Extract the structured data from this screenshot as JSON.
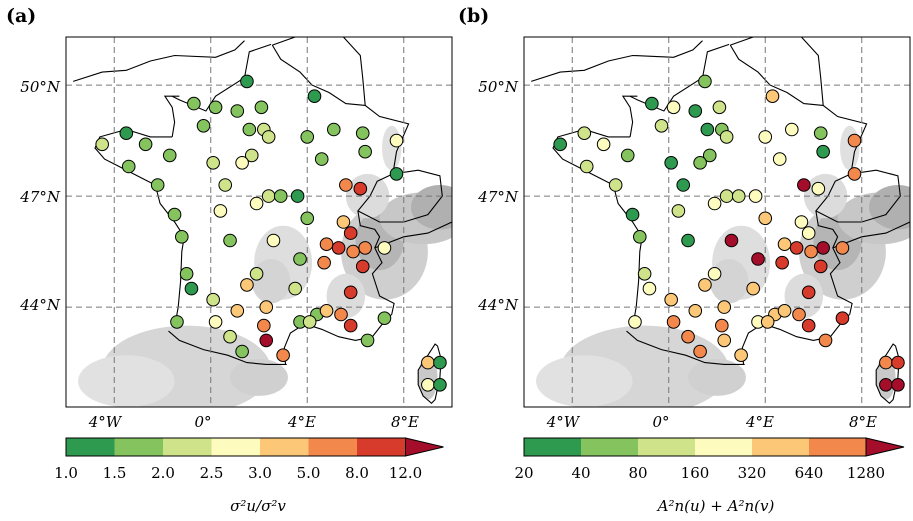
{
  "panels": [
    {
      "label": "(a)",
      "x_ticks": [
        "4°W",
        "0°",
        "4°E",
        "8°E"
      ],
      "y_ticks": [
        "50°N",
        "47°N",
        "44°N"
      ],
      "colorbar": {
        "ticks": [
          "1.0",
          "1.5",
          "2.0",
          "2.5",
          "3.0",
          "5.0",
          "8.0",
          "12.0"
        ],
        "label": "σ²u/σ²v",
        "colors": [
          "#2e9a4f",
          "#84c35e",
          "#cfe48a",
          "#fdfcbe",
          "#fcc878",
          "#f3884c",
          "#d73b2c",
          "#a50e2a"
        ]
      }
    },
    {
      "label": "(b)",
      "x_ticks": [
        "4°W",
        "0°",
        "4°E",
        "8°E"
      ],
      "y_ticks": [
        "50°N",
        "47°N",
        "44°N"
      ],
      "colorbar": {
        "ticks": [
          "20",
          "40",
          "80",
          "160",
          "320",
          "640",
          "1280"
        ],
        "label": "A²n(u) + A²n(v)",
        "colors": [
          "#2e9a4f",
          "#84c35e",
          "#cfe48a",
          "#fdfcbe",
          "#fcc878",
          "#f3884c",
          "#d73b2c",
          "#a50e2a"
        ]
      }
    }
  ],
  "map_data": {
    "lon_range": [
      -6.0,
      10.0
    ],
    "lat_range": [
      41.3,
      51.3
    ],
    "grid_lons": [
      -4,
      0,
      4,
      8
    ],
    "grid_lats": [
      50,
      47,
      44
    ],
    "stations_a": [
      {
        "lon": 1.5,
        "lat": 50.1,
        "c": 0
      },
      {
        "lon": 4.3,
        "lat": 49.7,
        "c": 0
      },
      {
        "lon": -0.7,
        "lat": 49.5,
        "c": 1
      },
      {
        "lon": 0.2,
        "lat": 49.4,
        "c": 1
      },
      {
        "lon": 1.1,
        "lat": 49.3,
        "c": 1
      },
      {
        "lon": 2.1,
        "lat": 49.4,
        "c": 1
      },
      {
        "lon": -0.3,
        "lat": 48.9,
        "c": 1
      },
      {
        "lon": 1.6,
        "lat": 48.8,
        "c": 1
      },
      {
        "lon": 2.2,
        "lat": 48.8,
        "c": 2
      },
      {
        "lon": 2.4,
        "lat": 48.6,
        "c": 2
      },
      {
        "lon": 4.0,
        "lat": 48.6,
        "c": 1
      },
      {
        "lon": 5.1,
        "lat": 48.8,
        "c": 1
      },
      {
        "lon": 6.3,
        "lat": 48.7,
        "c": 1
      },
      {
        "lon": -4.5,
        "lat": 48.4,
        "c": 2
      },
      {
        "lon": -3.5,
        "lat": 48.7,
        "c": 0
      },
      {
        "lon": -2.7,
        "lat": 48.4,
        "c": 1
      },
      {
        "lon": -1.7,
        "lat": 48.1,
        "c": 1
      },
      {
        "lon": 1.7,
        "lat": 48.1,
        "c": 2
      },
      {
        "lon": 4.6,
        "lat": 48.0,
        "c": 1
      },
      {
        "lon": 6.4,
        "lat": 48.2,
        "c": 1
      },
      {
        "lon": 7.7,
        "lat": 48.5,
        "c": 3
      },
      {
        "lon": -3.4,
        "lat": 47.8,
        "c": 1
      },
      {
        "lon": -2.2,
        "lat": 47.3,
        "c": 1
      },
      {
        "lon": 0.1,
        "lat": 47.9,
        "c": 2
      },
      {
        "lon": 0.6,
        "lat": 47.3,
        "c": 2
      },
      {
        "lon": 1.3,
        "lat": 47.9,
        "c": 3
      },
      {
        "lon": 2.4,
        "lat": 47.0,
        "c": 2
      },
      {
        "lon": 2.9,
        "lat": 47.0,
        "c": 1
      },
      {
        "lon": 3.6,
        "lat": 47.0,
        "c": 0
      },
      {
        "lon": 5.6,
        "lat": 47.3,
        "c": 5
      },
      {
        "lon": 6.2,
        "lat": 47.2,
        "c": 6
      },
      {
        "lon": 7.7,
        "lat": 47.6,
        "c": 0
      },
      {
        "lon": -1.5,
        "lat": 46.5,
        "c": 1
      },
      {
        "lon": 0.4,
        "lat": 46.6,
        "c": 3
      },
      {
        "lon": 1.9,
        "lat": 46.8,
        "c": 3
      },
      {
        "lon": 4.0,
        "lat": 46.4,
        "c": 1
      },
      {
        "lon": 5.5,
        "lat": 46.3,
        "c": 4
      },
      {
        "lon": -1.2,
        "lat": 45.9,
        "c": 1
      },
      {
        "lon": 0.8,
        "lat": 45.8,
        "c": 1
      },
      {
        "lon": 2.6,
        "lat": 45.8,
        "c": 3
      },
      {
        "lon": 4.8,
        "lat": 45.7,
        "c": 5
      },
      {
        "lon": 5.8,
        "lat": 46.0,
        "c": 6
      },
      {
        "lon": 5.3,
        "lat": 45.6,
        "c": 6
      },
      {
        "lon": 6.4,
        "lat": 45.6,
        "c": 5
      },
      {
        "lon": 7.2,
        "lat": 45.6,
        "c": 3
      },
      {
        "lon": 3.7,
        "lat": 45.3,
        "c": 1
      },
      {
        "lon": 4.7,
        "lat": 45.2,
        "c": 5
      },
      {
        "lon": 5.9,
        "lat": 45.5,
        "c": 5
      },
      {
        "lon": 6.3,
        "lat": 45.1,
        "c": 6
      },
      {
        "lon": -1.0,
        "lat": 44.9,
        "c": 1
      },
      {
        "lon": 1.9,
        "lat": 44.9,
        "c": 2
      },
      {
        "lon": -0.8,
        "lat": 44.5,
        "c": 0
      },
      {
        "lon": 1.5,
        "lat": 44.6,
        "c": 4
      },
      {
        "lon": 0.1,
        "lat": 44.2,
        "c": 2
      },
      {
        "lon": 3.5,
        "lat": 44.5,
        "c": 2
      },
      {
        "lon": 2.3,
        "lat": 44.0,
        "c": 4
      },
      {
        "lon": 5.8,
        "lat": 44.4,
        "c": 6
      },
      {
        "lon": -1.4,
        "lat": 43.6,
        "c": 1
      },
      {
        "lon": 0.2,
        "lat": 43.6,
        "c": 3
      },
      {
        "lon": 1.1,
        "lat": 43.9,
        "c": 4
      },
      {
        "lon": 2.2,
        "lat": 43.5,
        "c": 5
      },
      {
        "lon": 3.7,
        "lat": 43.6,
        "c": 1
      },
      {
        "lon": 4.4,
        "lat": 43.8,
        "c": 1
      },
      {
        "lon": 4.8,
        "lat": 43.9,
        "c": 4
      },
      {
        "lon": 5.4,
        "lat": 43.8,
        "c": 5
      },
      {
        "lon": 5.8,
        "lat": 43.5,
        "c": 6
      },
      {
        "lon": 7.2,
        "lat": 43.7,
        "c": 1
      },
      {
        "lon": 0.8,
        "lat": 43.2,
        "c": 2
      },
      {
        "lon": 2.3,
        "lat": 43.1,
        "c": 7
      },
      {
        "lon": 1.3,
        "lat": 42.8,
        "c": 1
      },
      {
        "lon": 3.0,
        "lat": 42.7,
        "c": 5
      },
      {
        "lon": 6.5,
        "lat": 43.1,
        "c": 1
      },
      {
        "lon": 4.1,
        "lat": 43.6,
        "c": 2
      },
      {
        "lon": 9.0,
        "lat": 42.5,
        "c": 4
      },
      {
        "lon": 9.5,
        "lat": 42.5,
        "c": 0
      },
      {
        "lon": 9.0,
        "lat": 41.9,
        "c": 3
      },
      {
        "lon": 9.5,
        "lat": 41.9,
        "c": 0
      }
    ],
    "stations_b": [
      {
        "lon": 1.5,
        "lat": 50.1,
        "c": 1
      },
      {
        "lon": 4.3,
        "lat": 49.7,
        "c": 4
      },
      {
        "lon": -0.7,
        "lat": 49.5,
        "c": 0
      },
      {
        "lon": 0.2,
        "lat": 49.4,
        "c": 3
      },
      {
        "lon": 1.1,
        "lat": 49.3,
        "c": 0
      },
      {
        "lon": 2.1,
        "lat": 49.4,
        "c": 2
      },
      {
        "lon": -0.3,
        "lat": 48.9,
        "c": 2
      },
      {
        "lon": 1.6,
        "lat": 48.8,
        "c": 0
      },
      {
        "lon": 2.2,
        "lat": 48.8,
        "c": 1
      },
      {
        "lon": 2.4,
        "lat": 48.6,
        "c": 2
      },
      {
        "lon": 4.0,
        "lat": 48.6,
        "c": 3
      },
      {
        "lon": 5.1,
        "lat": 48.8,
        "c": 3
      },
      {
        "lon": 6.3,
        "lat": 48.7,
        "c": 1
      },
      {
        "lon": -4.5,
        "lat": 48.4,
        "c": 0
      },
      {
        "lon": -3.5,
        "lat": 48.7,
        "c": 2
      },
      {
        "lon": -2.7,
        "lat": 48.4,
        "c": 3
      },
      {
        "lon": -1.7,
        "lat": 48.1,
        "c": 1
      },
      {
        "lon": 1.7,
        "lat": 48.1,
        "c": 1
      },
      {
        "lon": 4.6,
        "lat": 48.0,
        "c": 3
      },
      {
        "lon": 6.4,
        "lat": 48.2,
        "c": 0
      },
      {
        "lon": 7.7,
        "lat": 48.5,
        "c": 5
      },
      {
        "lon": -3.4,
        "lat": 47.8,
        "c": 2
      },
      {
        "lon": -2.2,
        "lat": 47.3,
        "c": 2
      },
      {
        "lon": 0.1,
        "lat": 47.9,
        "c": 0
      },
      {
        "lon": 0.6,
        "lat": 47.3,
        "c": 0
      },
      {
        "lon": 1.3,
        "lat": 47.9,
        "c": 1
      },
      {
        "lon": 2.4,
        "lat": 47.0,
        "c": 2
      },
      {
        "lon": 2.9,
        "lat": 47.0,
        "c": 2
      },
      {
        "lon": 3.6,
        "lat": 47.0,
        "c": 3
      },
      {
        "lon": 5.6,
        "lat": 47.3,
        "c": 7
      },
      {
        "lon": 6.2,
        "lat": 47.2,
        "c": 3
      },
      {
        "lon": 7.7,
        "lat": 47.6,
        "c": 5
      },
      {
        "lon": -1.5,
        "lat": 46.5,
        "c": 0
      },
      {
        "lon": 0.4,
        "lat": 46.6,
        "c": 2
      },
      {
        "lon": 1.9,
        "lat": 46.8,
        "c": 3
      },
      {
        "lon": 4.0,
        "lat": 46.4,
        "c": 4
      },
      {
        "lon": 5.5,
        "lat": 46.3,
        "c": 3
      },
      {
        "lon": -1.2,
        "lat": 45.9,
        "c": 1
      },
      {
        "lon": 0.8,
        "lat": 45.8,
        "c": 0
      },
      {
        "lon": 2.6,
        "lat": 45.8,
        "c": 7
      },
      {
        "lon": 4.8,
        "lat": 45.7,
        "c": 4
      },
      {
        "lon": 5.8,
        "lat": 46.0,
        "c": 3
      },
      {
        "lon": 5.3,
        "lat": 45.6,
        "c": 6
      },
      {
        "lon": 6.4,
        "lat": 45.6,
        "c": 7
      },
      {
        "lon": 7.2,
        "lat": 45.6,
        "c": 5
      },
      {
        "lon": 3.7,
        "lat": 45.3,
        "c": 7
      },
      {
        "lon": 4.7,
        "lat": 45.2,
        "c": 6
      },
      {
        "lon": 5.9,
        "lat": 45.5,
        "c": 5
      },
      {
        "lon": 6.3,
        "lat": 45.1,
        "c": 6
      },
      {
        "lon": -1.0,
        "lat": 44.9,
        "c": 2
      },
      {
        "lon": 1.9,
        "lat": 44.9,
        "c": 3
      },
      {
        "lon": -0.8,
        "lat": 44.5,
        "c": 3
      },
      {
        "lon": 1.5,
        "lat": 44.6,
        "c": 4
      },
      {
        "lon": 0.1,
        "lat": 44.2,
        "c": 4
      },
      {
        "lon": 3.5,
        "lat": 44.5,
        "c": 4
      },
      {
        "lon": 2.3,
        "lat": 44.0,
        "c": 4
      },
      {
        "lon": 5.8,
        "lat": 44.4,
        "c": 6
      },
      {
        "lon": -1.4,
        "lat": 43.6,
        "c": 3
      },
      {
        "lon": 0.2,
        "lat": 43.6,
        "c": 5
      },
      {
        "lon": 1.1,
        "lat": 43.9,
        "c": 4
      },
      {
        "lon": 2.2,
        "lat": 43.5,
        "c": 5
      },
      {
        "lon": 3.7,
        "lat": 43.6,
        "c": 3
      },
      {
        "lon": 4.4,
        "lat": 43.8,
        "c": 4
      },
      {
        "lon": 4.8,
        "lat": 43.9,
        "c": 4
      },
      {
        "lon": 5.4,
        "lat": 43.8,
        "c": 5
      },
      {
        "lon": 5.8,
        "lat": 43.5,
        "c": 6
      },
      {
        "lon": 7.2,
        "lat": 43.7,
        "c": 6
      },
      {
        "lon": 0.8,
        "lat": 43.2,
        "c": 5
      },
      {
        "lon": 2.3,
        "lat": 43.1,
        "c": 4
      },
      {
        "lon": 1.3,
        "lat": 42.8,
        "c": 5
      },
      {
        "lon": 3.0,
        "lat": 42.7,
        "c": 4
      },
      {
        "lon": 6.5,
        "lat": 43.1,
        "c": 5
      },
      {
        "lon": 4.1,
        "lat": 43.6,
        "c": 4
      },
      {
        "lon": 9.0,
        "lat": 42.5,
        "c": 5
      },
      {
        "lon": 9.5,
        "lat": 42.5,
        "c": 6
      },
      {
        "lon": 9.0,
        "lat": 41.9,
        "c": 7
      },
      {
        "lon": 9.5,
        "lat": 41.9,
        "c": 7
      }
    ]
  }
}
